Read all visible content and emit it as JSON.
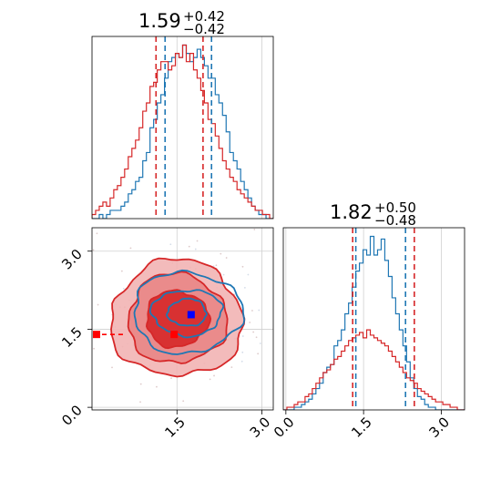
{
  "chart_data": {
    "type": "corner",
    "colors": {
      "red": "#d62728",
      "blue": "#1f77b4",
      "red_fill_light": "#ec9a9a",
      "red_fill_dark": "#d62728",
      "blue_point": "#0000ff"
    },
    "grid": true,
    "panels": [
      {
        "name": "hist-param-1",
        "type": "histogram",
        "title": {
          "median": "1.59",
          "plus": "+0.42",
          "minus": "−0.42"
        },
        "xlim": [
          0.0,
          3.2
        ],
        "series": [
          {
            "name": "",
            "color": "#1f77b4",
            "quantiles": [
              1.29,
              2.11
            ],
            "counts": [
              0,
              0,
              1,
              0,
              1,
              2,
              2,
              2,
              3,
              4,
              6,
              7,
              9,
              10,
              14,
              16,
              22,
              24,
              28,
              30,
              34,
              38,
              39,
              40,
              39,
              42,
              40,
              38,
              39,
              41,
              39,
              37,
              34,
              34,
              30,
              28,
              25,
              21,
              16,
              14,
              12,
              9,
              7,
              5,
              3,
              2,
              1,
              1,
              0,
              0
            ]
          },
          {
            "name": "",
            "color": "#d62728",
            "quantiles": [
              1.13,
              1.96
            ],
            "counts": [
              1,
              2,
              3,
              4,
              3,
              5,
              7,
              8,
              10,
              12,
              15,
              17,
              19,
              22,
              26,
              28,
              32,
              33,
              36,
              38,
              38,
              36,
              37,
              40,
              39,
              42,
              38,
              40,
              36,
              34,
              31,
              28,
              24,
              23,
              20,
              17,
              14,
              12,
              10,
              9,
              7,
              6,
              5,
              4,
              3,
              2,
              2,
              1,
              1,
              0
            ]
          }
        ]
      },
      {
        "name": "hist-param-2",
        "type": "histogram",
        "title": {
          "median": "1.82",
          "plus": "+0.50",
          "minus": "−0.48"
        },
        "xlim": [
          -0.05,
          3.45
        ],
        "xticks": [
          "0.0",
          "1.5",
          "3.0"
        ],
        "series": [
          {
            "name": "",
            "color": "#1f77b4",
            "quantiles": [
              1.35,
              2.31
            ],
            "counts": [
              0,
              0,
              0,
              1,
              1,
              2,
              3,
              4,
              6,
              8,
              10,
              14,
              16,
              17,
              24,
              26,
              30,
              36,
              40,
              46,
              52,
              55,
              60,
              58,
              65,
              58,
              60,
              64,
              56,
              50,
              42,
              36,
              30,
              24,
              18,
              12,
              8,
              5,
              4,
              2,
              1,
              1,
              0,
              0,
              0,
              0,
              0,
              0,
              0,
              0
            ]
          },
          {
            "name": "",
            "color": "#d62728",
            "quantiles": [
              1.29,
              2.48
            ],
            "counts": [
              0,
              1,
              1,
              2,
              3,
              3,
              5,
              6,
              8,
              10,
              12,
              14,
              15,
              17,
              19,
              20,
              22,
              24,
              26,
              27,
              28,
              29,
              27,
              30,
              28,
              27,
              26,
              25,
              24,
              22,
              20,
              18,
              16,
              14,
              12,
              11,
              10,
              8,
              7,
              6,
              5,
              4,
              3,
              3,
              2,
              2,
              1,
              1,
              0,
              0
            ]
          }
        ]
      },
      {
        "name": "contour-param1-param2",
        "type": "contour",
        "xlim": [
          0.0,
          3.2
        ],
        "ylim": [
          -0.05,
          3.45
        ],
        "xticks": [
          "1.5",
          "3.0"
        ],
        "yticks": [
          "0.0",
          "1.5",
          "3.0"
        ],
        "series": [
          {
            "name": "",
            "color": "#d62728",
            "center": [
              1.5,
              1.7
            ],
            "radii": [
              [
                0.55,
                0.54
              ],
              [
                0.87,
                0.86
              ],
              [
                1.16,
                1.12
              ]
            ]
          },
          {
            "name": "",
            "color": "#1f77b4",
            "center": [
              1.68,
              1.82
            ],
            "radii": [
              [
                0.34,
                0.26
              ],
              [
                0.62,
                0.44
              ],
              [
                0.96,
                0.78
              ]
            ]
          }
        ],
        "markers": [
          {
            "name": "red-point-outlier",
            "color": "#ff0000",
            "x": 0.08,
            "y": 1.4
          },
          {
            "name": "red-point-center",
            "color": "#ff0000",
            "x": 1.45,
            "y": 1.4
          },
          {
            "name": "blue-point",
            "color": "#0000ff",
            "x": 1.75,
            "y": 1.78
          }
        ]
      }
    ]
  }
}
